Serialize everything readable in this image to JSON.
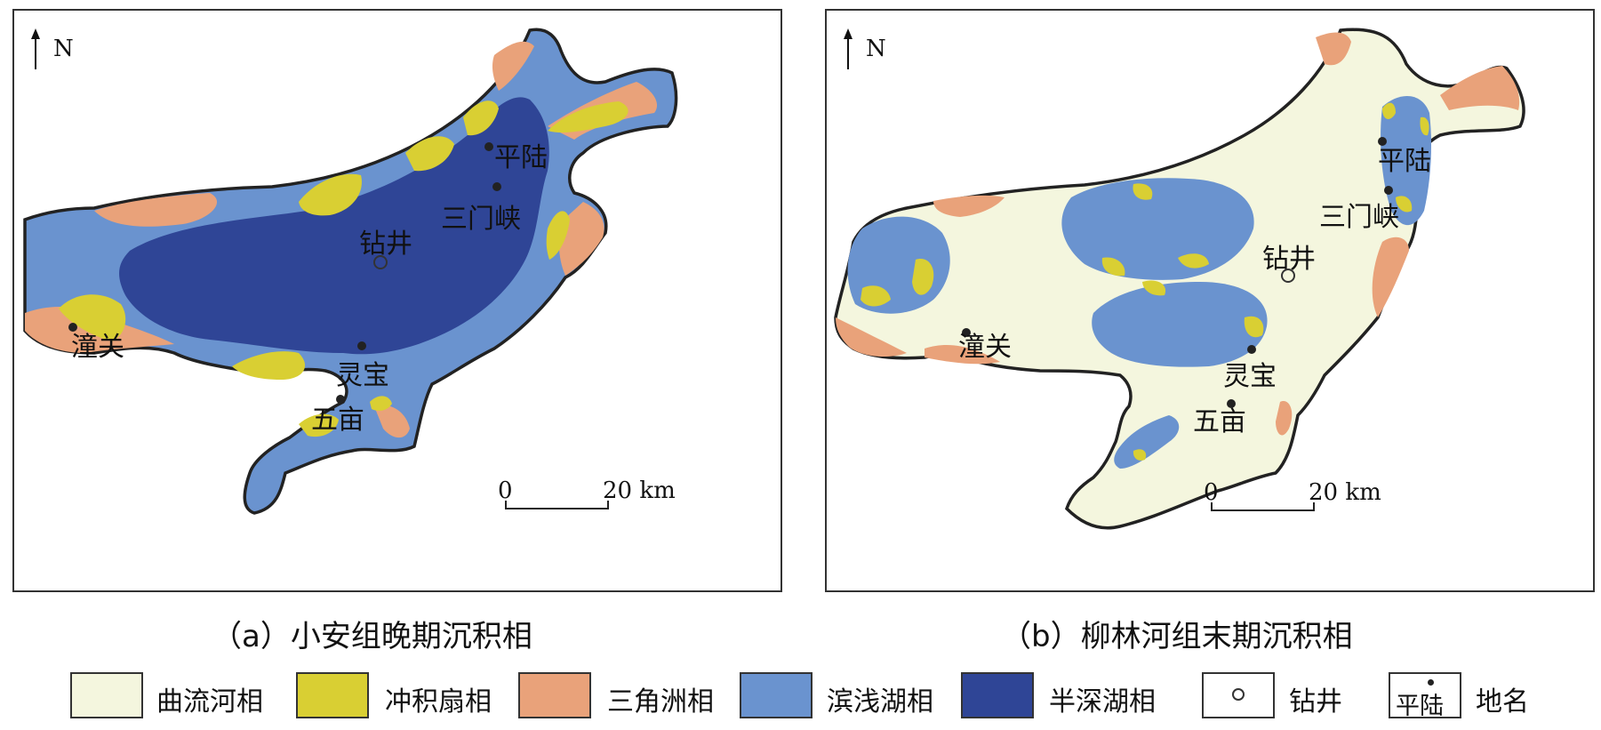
{
  "colors": {
    "meander": "#f4f6de",
    "alluvial_fan": "#d9cf33",
    "delta": "#e9a27a",
    "shallow_lake": "#6a93cf",
    "semi_deep_lake": "#2f4596",
    "outline": "#222222"
  },
  "icons": {
    "north": "north-arrow-icon",
    "well": "well-circle-icon",
    "place": "place-dot-icon"
  },
  "panels": [
    {
      "north": "N",
      "caption": "（a）小安组晚期沉积相",
      "places": [
        "平陆",
        "三门峡",
        "钻井",
        "潼关",
        "灵宝",
        "五亩"
      ],
      "scale_start": "0",
      "scale_end": "20 km"
    },
    {
      "north": "N",
      "caption": "（b）柳林河组末期沉积相",
      "places": [
        "平陆",
        "三门峡",
        "钻井",
        "潼关",
        "灵宝",
        "五亩"
      ],
      "scale_start": "0",
      "scale_end": "20 km"
    }
  ],
  "legend": [
    {
      "label": "曲流河相",
      "color": "#f4f6de"
    },
    {
      "label": "冲积扇相",
      "color": "#d9cf33"
    },
    {
      "label": "三角洲相",
      "color": "#e9a27a"
    },
    {
      "label": "滨浅湖相",
      "color": "#6a93cf"
    },
    {
      "label": "半深湖相",
      "color": "#2f4596"
    },
    {
      "label": "钻井",
      "color": "#ffffff"
    },
    {
      "label": "地名",
      "color": "#ffffff",
      "sample": "平陆"
    }
  ]
}
